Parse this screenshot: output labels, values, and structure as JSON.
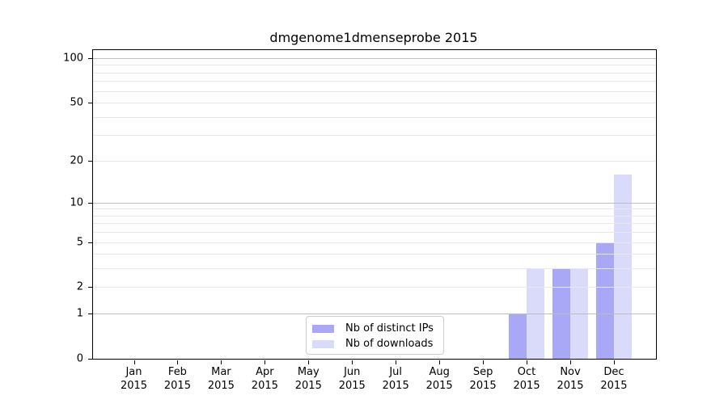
{
  "chart_data": {
    "type": "bar",
    "title": "dmgenome1dmenseprobe 2015",
    "xlabel": "",
    "ylabel": "",
    "yscale": "log1p",
    "ylim": [
      0,
      113
    ],
    "categories": [
      "Jan",
      "Feb",
      "Mar",
      "Apr",
      "May",
      "Jun",
      "Jul",
      "Aug",
      "Sep",
      "Oct",
      "Nov",
      "Dec"
    ],
    "year_label": "2015",
    "series": [
      {
        "name": "Nb of distinct IPs",
        "color": "#a8a8f7",
        "values": [
          0,
          0,
          0,
          0,
          0,
          0,
          0,
          0,
          0,
          1,
          3,
          5
        ]
      },
      {
        "name": "Nb of downloads",
        "color": "#dadafa",
        "values": [
          0,
          0,
          0,
          0,
          0,
          0,
          0,
          0,
          0,
          3,
          3,
          16
        ]
      }
    ],
    "yticks": [
      {
        "value": 0,
        "label": "0"
      },
      {
        "value": 1,
        "label": "1"
      },
      {
        "value": 2,
        "label": "2"
      },
      {
        "value": 5,
        "label": "5"
      },
      {
        "value": 10,
        "label": "10"
      },
      {
        "value": 20,
        "label": "20"
      },
      {
        "value": 50,
        "label": "50"
      },
      {
        "value": 100,
        "label": "100"
      }
    ],
    "grid": {
      "major_values": [
        1,
        10,
        100
      ],
      "minor_values": [
        2,
        3,
        4,
        5,
        6,
        7,
        8,
        9,
        20,
        30,
        40,
        50,
        60,
        70,
        80,
        90
      ]
    },
    "legend_position": "lower-center",
    "grid_on": true
  },
  "colors": {
    "background": "#ffffff",
    "text": "#000000",
    "spine": "#000000",
    "grid_major": "#bdbdbd",
    "grid_minor": "#e8e8e8",
    "legend_border": "#cccccc",
    "legend_bg": "#ffffff"
  }
}
